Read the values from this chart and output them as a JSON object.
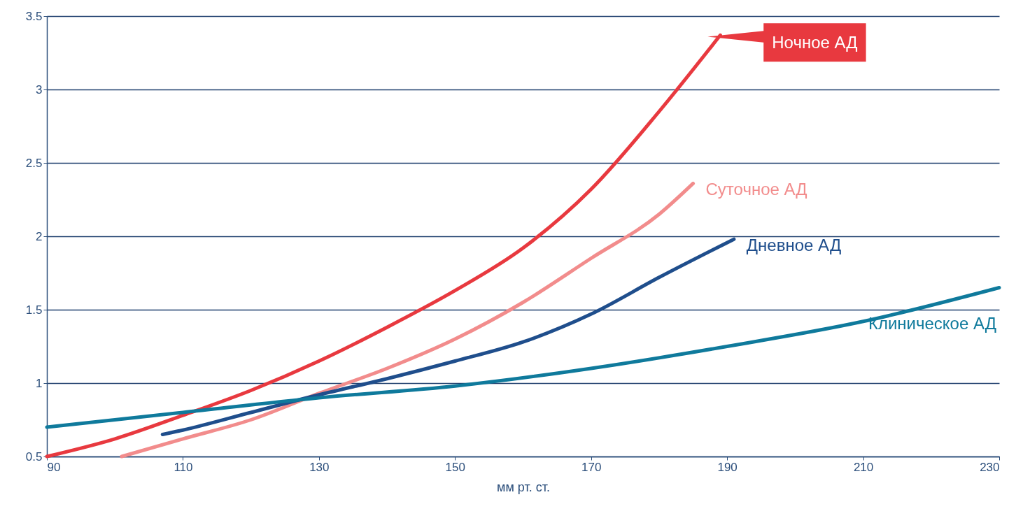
{
  "chart_data": {
    "type": "line",
    "xlabel": "мм рт. ст.",
    "xlim": [
      90,
      230
    ],
    "xticks": [
      90,
      110,
      130,
      150,
      170,
      190,
      210,
      230
    ],
    "ylim": [
      0.5,
      3.5
    ],
    "yticks": [
      0.5,
      1,
      1.5,
      2,
      2.5,
      3,
      3.5
    ],
    "grid": "y",
    "legend": false,
    "line_style": "solid",
    "marker": "none",
    "series": [
      {
        "name": "Ночное АД",
        "color": "#e8393f",
        "x": [
          90,
          100,
          110,
          120,
          130,
          140,
          150,
          160,
          170,
          180,
          189
        ],
        "values": [
          0.5,
          0.62,
          0.78,
          0.95,
          1.15,
          1.38,
          1.63,
          1.92,
          2.32,
          2.85,
          3.37
        ]
      },
      {
        "name": "Суточное АД",
        "color": "#f28c8c",
        "x": [
          101,
          110,
          120,
          130,
          140,
          150,
          160,
          170,
          180,
          185
        ],
        "values": [
          0.5,
          0.62,
          0.75,
          0.93,
          1.1,
          1.3,
          1.55,
          1.85,
          2.15,
          2.36
        ]
      },
      {
        "name": "Дневное АД",
        "color": "#1f4e8c",
        "x": [
          107,
          110,
          120,
          130,
          140,
          150,
          160,
          170,
          180,
          191
        ],
        "values": [
          0.65,
          0.68,
          0.8,
          0.92,
          1.03,
          1.15,
          1.28,
          1.47,
          1.72,
          1.98
        ]
      },
      {
        "name": "Клиническое АД",
        "color": "#0f7a9c",
        "x": [
          90,
          110,
          130,
          150,
          170,
          190,
          210,
          230
        ],
        "values": [
          0.7,
          0.8,
          0.9,
          0.98,
          1.1,
          1.25,
          1.42,
          1.65
        ]
      }
    ]
  }
}
